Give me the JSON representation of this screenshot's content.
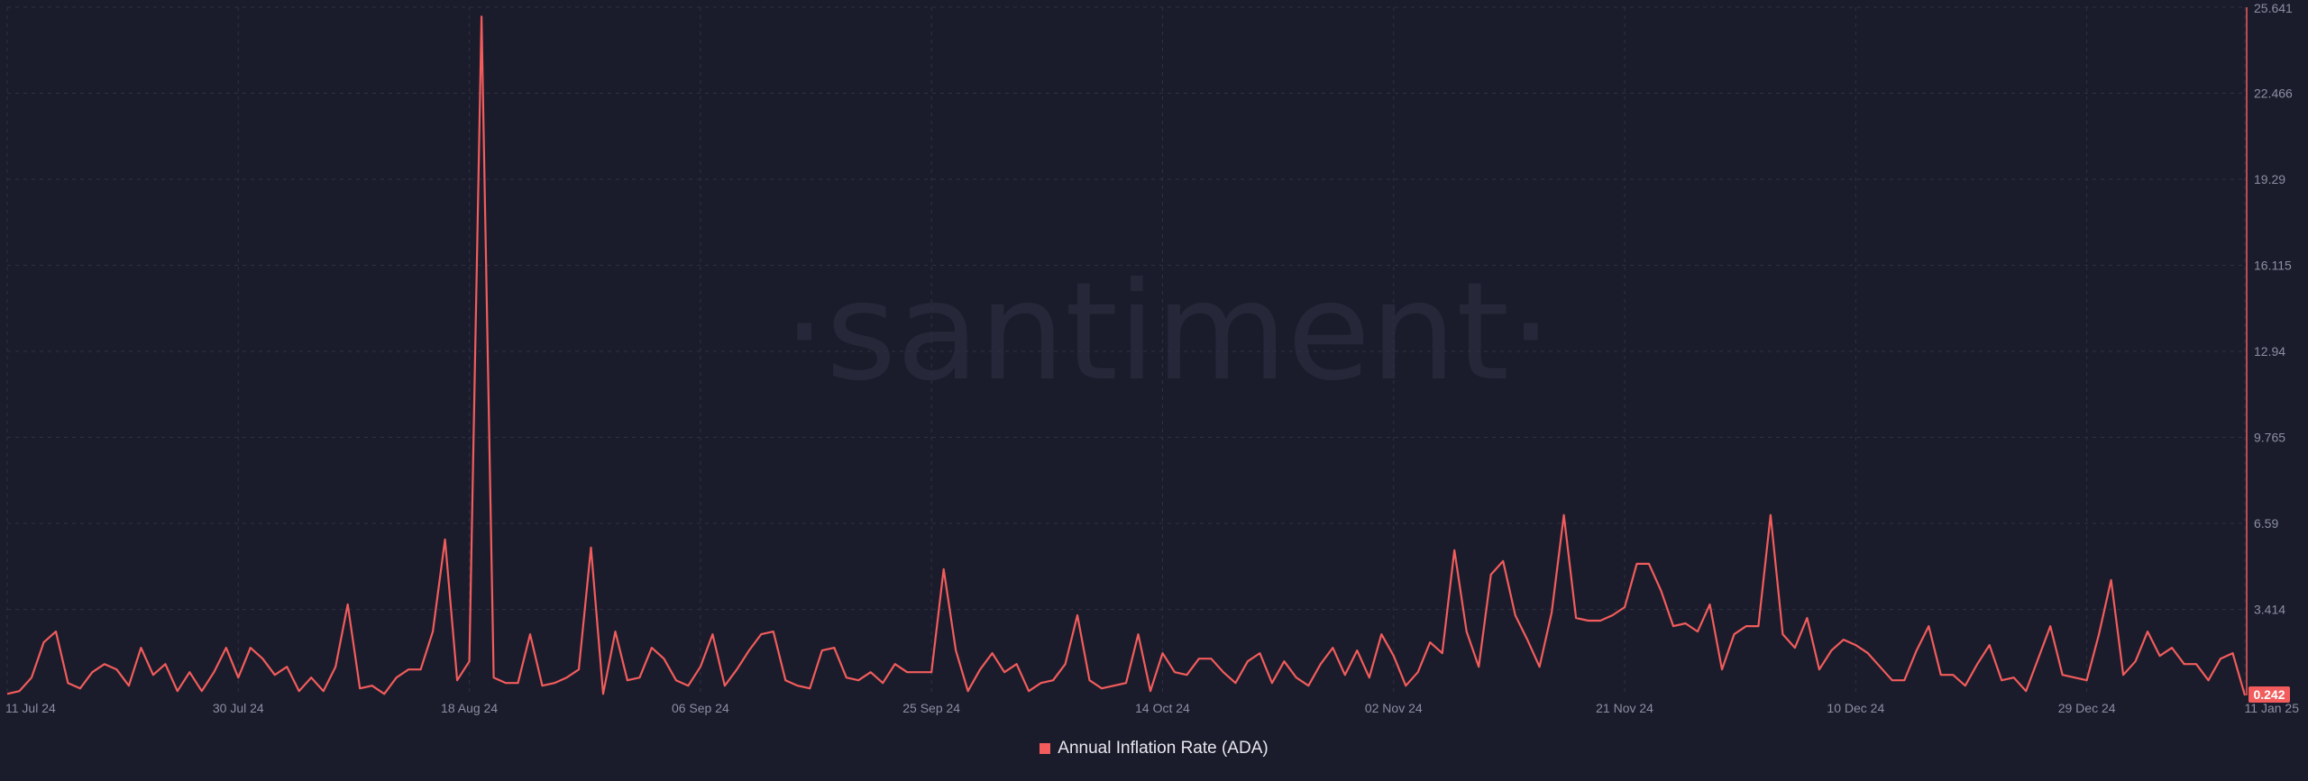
{
  "chart_data": {
    "type": "line",
    "watermark": "·santiment·",
    "y_ticks": [
      "25.641",
      "22.466",
      "19.29",
      "16.115",
      "12.94",
      "9.765",
      "6.59",
      "3.414"
    ],
    "ylim": [
      0.242,
      25.641
    ],
    "x_ticks": [
      {
        "label": "11 Jul 24",
        "day": 0
      },
      {
        "label": "30 Jul 24",
        "day": 19
      },
      {
        "label": "18 Aug 24",
        "day": 38
      },
      {
        "label": "06 Sep 24",
        "day": 57
      },
      {
        "label": "25 Sep 24",
        "day": 76
      },
      {
        "label": "14 Oct 24",
        "day": 95
      },
      {
        "label": "02 Nov 24",
        "day": 114
      },
      {
        "label": "21 Nov 24",
        "day": 133
      },
      {
        "label": "10 Dec 24",
        "day": 152
      },
      {
        "label": "29 Dec 24",
        "day": 171
      },
      {
        "label": "11 Jan 25",
        "day": 184
      }
    ],
    "series": [
      {
        "name": "Annual Inflation Rate (ADA)",
        "color": "#f25c5c",
        "last_value_label": "0.242",
        "values": [
          0.3,
          0.4,
          0.9,
          2.2,
          2.6,
          0.7,
          0.5,
          1.1,
          1.4,
          1.2,
          0.6,
          2.0,
          1.0,
          1.4,
          0.4,
          1.1,
          0.4,
          1.1,
          2.0,
          0.9,
          2.0,
          1.6,
          1.0,
          1.3,
          0.4,
          0.9,
          0.4,
          1.3,
          3.6,
          0.5,
          0.6,
          0.3,
          0.9,
          1.2,
          1.2,
          2.6,
          6.0,
          0.8,
          1.5,
          25.3,
          0.9,
          0.7,
          0.7,
          2.5,
          0.6,
          0.7,
          0.9,
          1.2,
          5.7,
          0.3,
          2.6,
          0.8,
          0.9,
          2.0,
          1.6,
          0.8,
          0.6,
          1.3,
          2.5,
          0.6,
          1.2,
          1.9,
          2.5,
          2.6,
          0.8,
          0.6,
          0.5,
          1.9,
          2.0,
          0.9,
          0.8,
          1.1,
          0.7,
          1.4,
          1.1,
          1.1,
          1.1,
          4.9,
          1.9,
          0.4,
          1.2,
          1.8,
          1.1,
          1.4,
          0.4,
          0.7,
          0.8,
          1.4,
          3.2,
          0.8,
          0.5,
          0.6,
          0.7,
          2.5,
          0.4,
          1.8,
          1.1,
          1.0,
          1.6,
          1.6,
          1.1,
          0.7,
          1.5,
          1.8,
          0.7,
          1.5,
          0.9,
          0.6,
          1.4,
          2.0,
          1.0,
          1.9,
          0.9,
          2.5,
          1.7,
          0.6,
          1.1,
          2.2,
          1.8,
          5.6,
          2.6,
          1.3,
          4.7,
          5.2,
          3.2,
          2.3,
          1.3,
          3.3,
          6.9,
          3.1,
          3.0,
          3.0,
          3.2,
          3.5,
          5.1,
          5.1,
          4.1,
          2.8,
          2.9,
          2.6,
          3.6,
          1.2,
          2.5,
          2.8,
          2.8,
          6.9,
          2.5,
          2.0,
          3.1,
          1.2,
          1.9,
          2.3,
          2.1,
          1.8,
          1.3,
          0.8,
          0.8,
          1.9,
          2.8,
          1.0,
          1.0,
          0.6,
          1.4,
          2.1,
          0.8,
          0.9,
          0.4,
          1.6,
          2.8,
          1.0,
          0.9,
          0.8,
          2.5,
          4.5,
          1.0,
          1.5,
          2.6,
          1.7,
          2.0,
          1.4,
          1.4,
          0.8,
          1.6,
          1.8,
          0.242
        ]
      }
    ],
    "grid": true,
    "legend": "bottom-center"
  }
}
